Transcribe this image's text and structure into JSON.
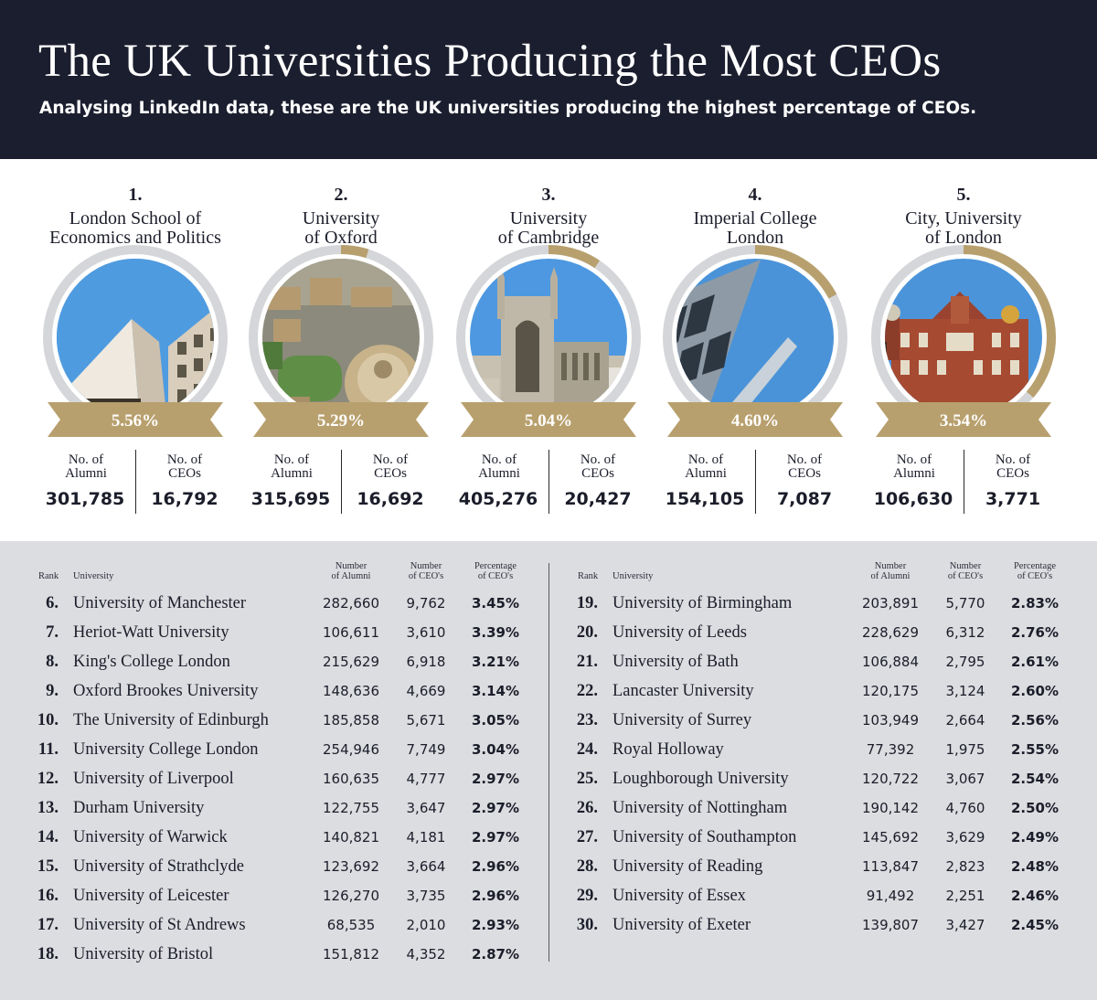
{
  "header": {
    "title": "The UK Universities Producing the Most CEOs",
    "subtitle": "Analysing LinkedIn data, these are the UK universities producing the highest percentage of CEOs."
  },
  "colors": {
    "header_bg": "#1b1e2e",
    "accent_gold": "#b8a06e",
    "ring_grey": "#d5d6d9",
    "table_bg": "#dcdde0"
  },
  "top5": {
    "alumni_label_1": "No. of",
    "alumni_label_2": "Alumni",
    "ceos_label_1": "No. of",
    "ceos_label_2": "CEOs",
    "items": [
      {
        "rank": "1.",
        "name_line1": "London School of",
        "name_line2": "Economics and Politics",
        "pct": "5.56%",
        "pct_value": 5.56,
        "alumni": "301,785",
        "ceos": "16,792"
      },
      {
        "rank": "2.",
        "name_line1": "University",
        "name_line2": "of Oxford",
        "pct": "5.29%",
        "pct_value": 5.29,
        "alumni": "315,695",
        "ceos": "16,692"
      },
      {
        "rank": "3.",
        "name_line1": "University",
        "name_line2": "of Cambridge",
        "pct": "5.04%",
        "pct_value": 5.04,
        "alumni": "405,276",
        "ceos": "20,427"
      },
      {
        "rank": "4.",
        "name_line1": "Imperial College",
        "name_line2": "London",
        "pct": "4.60%",
        "pct_value": 4.6,
        "alumni": "154,105",
        "ceos": "7,087"
      },
      {
        "rank": "5.",
        "name_line1": "City, University",
        "name_line2": "of London",
        "pct": "3.54%",
        "pct_value": 3.54,
        "alumni": "106,630",
        "ceos": "3,771"
      }
    ]
  },
  "table": {
    "headers": {
      "rank": "Rank",
      "university": "University",
      "alumni_1": "Number",
      "alumni_2": "of Alumni",
      "ceos_1": "Number",
      "ceos_2": "of CEO's",
      "pct_1": "Percentage",
      "pct_2": "of CEO's"
    },
    "left": [
      {
        "rank": "6.",
        "name": "University of Manchester",
        "alumni": "282,660",
        "ceos": "9,762",
        "pct": "3.45%"
      },
      {
        "rank": "7.",
        "name": "Heriot-Watt University",
        "alumni": "106,611",
        "ceos": "3,610",
        "pct": "3.39%"
      },
      {
        "rank": "8.",
        "name": "King's College London",
        "alumni": "215,629",
        "ceos": "6,918",
        "pct": "3.21%"
      },
      {
        "rank": "9.",
        "name": "Oxford Brookes University",
        "alumni": "148,636",
        "ceos": "4,669",
        "pct": "3.14%"
      },
      {
        "rank": "10.",
        "name": "The University of Edinburgh",
        "alumni": "185,858",
        "ceos": "5,671",
        "pct": "3.05%"
      },
      {
        "rank": "11.",
        "name": "University College London",
        "alumni": "254,946",
        "ceos": "7,749",
        "pct": "3.04%"
      },
      {
        "rank": "12.",
        "name": "University of Liverpool",
        "alumni": "160,635",
        "ceos": "4,777",
        "pct": "2.97%"
      },
      {
        "rank": "13.",
        "name": "Durham University",
        "alumni": "122,755",
        "ceos": "3,647",
        "pct": "2.97%"
      },
      {
        "rank": "14.",
        "name": "University of Warwick",
        "alumni": "140,821",
        "ceos": "4,181",
        "pct": "2.97%"
      },
      {
        "rank": "15.",
        "name": "University of Strathclyde",
        "alumni": "123,692",
        "ceos": "3,664",
        "pct": "2.96%"
      },
      {
        "rank": "16.",
        "name": "University of Leicester",
        "alumni": "126,270",
        "ceos": "3,735",
        "pct": "2.96%"
      },
      {
        "rank": "17.",
        "name": "University of St Andrews",
        "alumni": "68,535",
        "ceos": "2,010",
        "pct": "2.93%"
      },
      {
        "rank": "18.",
        "name": "University of Bristol",
        "alumni": "151,812",
        "ceos": "4,352",
        "pct": "2.87%"
      }
    ],
    "right": [
      {
        "rank": "19.",
        "name": "University of Birmingham",
        "alumni": "203,891",
        "ceos": "5,770",
        "pct": "2.83%"
      },
      {
        "rank": "20.",
        "name": "University of Leeds",
        "alumni": "228,629",
        "ceos": "6,312",
        "pct": "2.76%"
      },
      {
        "rank": "21.",
        "name": "University of Bath",
        "alumni": "106,884",
        "ceos": "2,795",
        "pct": "2.61%"
      },
      {
        "rank": "22.",
        "name": "Lancaster University",
        "alumni": "120,175",
        "ceos": "3,124",
        "pct": "2.60%"
      },
      {
        "rank": "23.",
        "name": "University of Surrey",
        "alumni": "103,949",
        "ceos": "2,664",
        "pct": "2.56%"
      },
      {
        "rank": "24.",
        "name": "Royal Holloway",
        "alumni": "77,392",
        "ceos": "1,975",
        "pct": "2.55%"
      },
      {
        "rank": "25.",
        "name": "Loughborough University",
        "alumni": "120,722",
        "ceos": "3,067",
        "pct": "2.54%"
      },
      {
        "rank": "26.",
        "name": "University of Nottingham",
        "alumni": "190,142",
        "ceos": "4,760",
        "pct": "2.50%"
      },
      {
        "rank": "27.",
        "name": "University of Southampton",
        "alumni": "145,692",
        "ceos": "3,629",
        "pct": "2.49%"
      },
      {
        "rank": "28.",
        "name": "University of Reading",
        "alumni": "113,847",
        "ceos": "2,823",
        "pct": "2.48%"
      },
      {
        "rank": "29.",
        "name": "University of Essex",
        "alumni": "91,492",
        "ceos": "2,251",
        "pct": "2.46%"
      },
      {
        "rank": "30.",
        "name": "University of Exeter",
        "alumni": "139,807",
        "ceos": "3,427",
        "pct": "2.45%"
      }
    ]
  },
  "chart_data": {
    "type": "table",
    "columns": [
      "Rank",
      "University",
      "Number of Alumni",
      "Number of CEO's",
      "Percentage of CEO's"
    ],
    "rows": [
      [
        1,
        "London School of Economics and Politics",
        301785,
        16792,
        5.56
      ],
      [
        2,
        "University of Oxford",
        315695,
        16692,
        5.29
      ],
      [
        3,
        "University of Cambridge",
        405276,
        20427,
        5.04
      ],
      [
        4,
        "Imperial College London",
        154105,
        7087,
        4.6
      ],
      [
        5,
        "City, University of London",
        106630,
        3771,
        3.54
      ],
      [
        6,
        "University of Manchester",
        282660,
        9762,
        3.45
      ],
      [
        7,
        "Heriot-Watt University",
        106611,
        3610,
        3.39
      ],
      [
        8,
        "King's College London",
        215629,
        6918,
        3.21
      ],
      [
        9,
        "Oxford Brookes University",
        148636,
        4669,
        3.14
      ],
      [
        10,
        "The University of Edinburgh",
        185858,
        5671,
        3.05
      ],
      [
        11,
        "University College London",
        254946,
        7749,
        3.04
      ],
      [
        12,
        "University of Liverpool",
        160635,
        4777,
        2.97
      ],
      [
        13,
        "Durham University",
        122755,
        3647,
        2.97
      ],
      [
        14,
        "University of Warwick",
        140821,
        4181,
        2.97
      ],
      [
        15,
        "University of Strathclyde",
        123692,
        3664,
        2.96
      ],
      [
        16,
        "University of Leicester",
        126270,
        3735,
        2.96
      ],
      [
        17,
        "University of St Andrews",
        68535,
        2010,
        2.93
      ],
      [
        18,
        "University of Bristol",
        151812,
        4352,
        2.87
      ],
      [
        19,
        "University of Birmingham",
        203891,
        5770,
        2.83
      ],
      [
        20,
        "University of Leeds",
        228629,
        6312,
        2.76
      ],
      [
        21,
        "University of Bath",
        106884,
        2795,
        2.61
      ],
      [
        22,
        "Lancaster University",
        120175,
        3124,
        2.6
      ],
      [
        23,
        "University of Surrey",
        103949,
        2664,
        2.56
      ],
      [
        24,
        "Royal Holloway",
        77392,
        1975,
        2.55
      ],
      [
        25,
        "Loughborough University",
        120722,
        3067,
        2.54
      ],
      [
        26,
        "University of Nottingham",
        190142,
        4760,
        2.5
      ],
      [
        27,
        "University of Southampton",
        145692,
        3629,
        2.49
      ],
      [
        28,
        "University of Reading",
        113847,
        2823,
        2.48
      ],
      [
        29,
        "University of Essex",
        91492,
        2251,
        2.46
      ],
      [
        30,
        "University of Exeter",
        139807,
        3427,
        2.45
      ]
    ]
  }
}
